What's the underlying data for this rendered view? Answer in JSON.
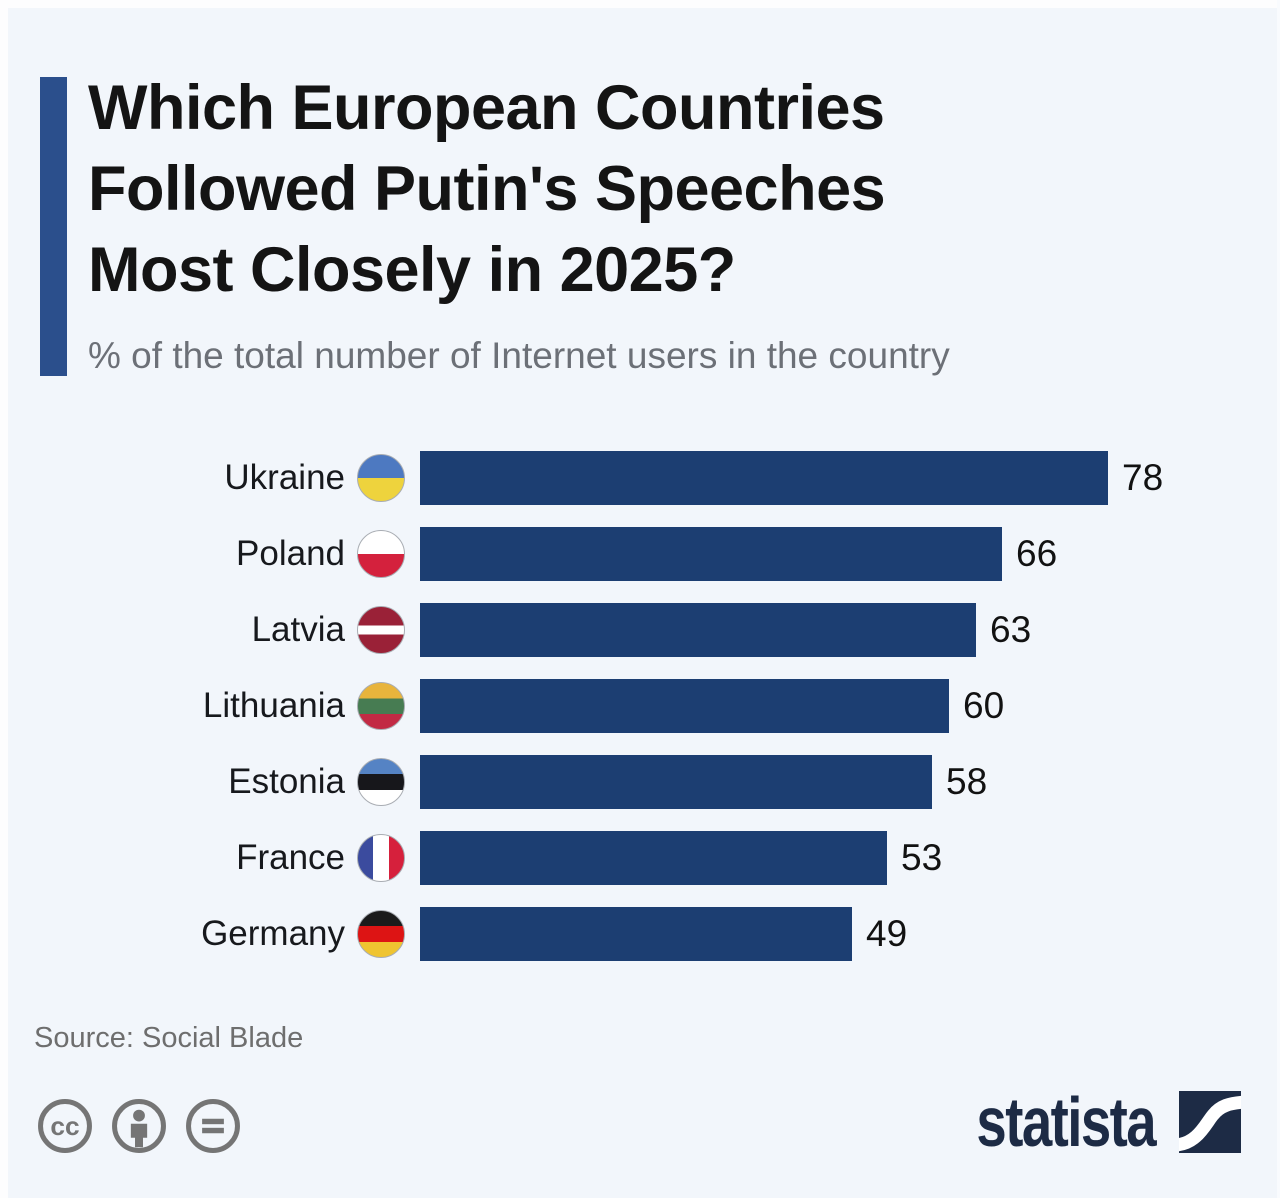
{
  "page": {
    "background_color": "#f2f6fb",
    "accent_color": "#2b4f8c"
  },
  "header": {
    "title_lines": [
      "Which European Countries",
      "Followed Putin's Speeches",
      "Most Closely in 2025?"
    ],
    "subtitle": "% of the total number of Internet users in the country"
  },
  "chart_data": {
    "type": "bar",
    "orientation": "horizontal",
    "title": "Which European Countries Followed Putin's Speeches Most Closely in 2025?",
    "subtitle": "% of the total number of Internet users in the country",
    "categories": [
      "Ukraine",
      "Poland",
      "Latvia",
      "Lithuania",
      "Estonia",
      "France",
      "Germany"
    ],
    "values": [
      78,
      66,
      63,
      60,
      58,
      53,
      49
    ],
    "xlim": [
      0,
      78
    ],
    "bar_color": "#1c3e72",
    "value_labels_shown": true,
    "grid": false,
    "legend": false,
    "flags": [
      {
        "country": "Ukraine",
        "type": "h",
        "stripes": [
          [
            "#4d79c1",
            50
          ],
          [
            "#eed33d",
            50
          ]
        ]
      },
      {
        "country": "Poland",
        "type": "h",
        "stripes": [
          [
            "#ffffff",
            50
          ],
          [
            "#d4213d",
            50
          ]
        ]
      },
      {
        "country": "Latvia",
        "type": "h",
        "stripes": [
          [
            "#9a2137",
            40
          ],
          [
            "#ffffff",
            20
          ],
          [
            "#9a2137",
            40
          ]
        ]
      },
      {
        "country": "Lithuania",
        "type": "h",
        "stripes": [
          [
            "#e8b43c",
            34
          ],
          [
            "#477c52",
            33
          ],
          [
            "#c22a44",
            33
          ]
        ]
      },
      {
        "country": "Estonia",
        "type": "h",
        "stripes": [
          [
            "#5583c4",
            33
          ],
          [
            "#17171b",
            34
          ],
          [
            "#ffffff",
            33
          ]
        ]
      },
      {
        "country": "France",
        "type": "v",
        "stripes": [
          [
            "#3b4b9e",
            33
          ],
          [
            "#ffffff",
            34
          ],
          [
            "#d6203c",
            33
          ]
        ]
      },
      {
        "country": "Germany",
        "type": "h",
        "stripes": [
          [
            "#1b1b1b",
            33
          ],
          [
            "#dd1414",
            34
          ],
          [
            "#efc431",
            33
          ]
        ]
      }
    ]
  },
  "footer": {
    "source": "Source: Social Blade",
    "license_icons": [
      "cc-icon",
      "cc-by-person-icon",
      "cc-nd-equals-icon"
    ],
    "brand": "statista"
  }
}
